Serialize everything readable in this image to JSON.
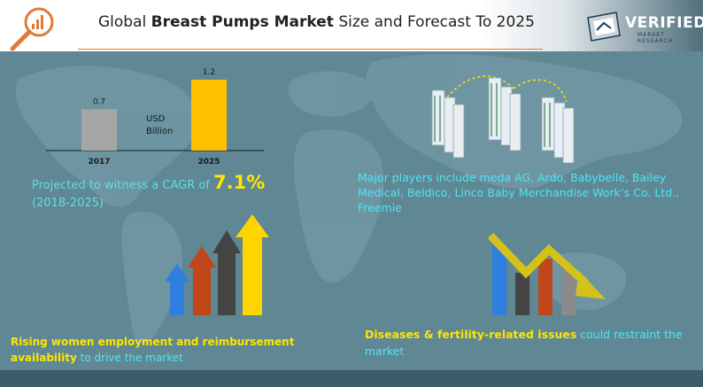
{
  "header": {
    "title_prefix": "Global ",
    "title_bold": "Breast Pumps Market",
    "title_suffix": " Size and Forecast To 2025",
    "logo_main": "VERIFIED",
    "logo_sub": "MARKET RESEARCH"
  },
  "chart_data": {
    "type": "bar",
    "categories": [
      "2017",
      "2025"
    ],
    "values": [
      0.7,
      1.2
    ],
    "data_labels": [
      "0.7",
      "1.2"
    ],
    "unit_label": "USD Billion",
    "unit_line1": "USD",
    "unit_line2": "Billion",
    "colors": [
      "#a6a6a6",
      "#ffc000"
    ],
    "ylim": [
      0,
      1.2
    ],
    "grid": false,
    "legend": "none"
  },
  "cagr": {
    "prefix": "Projected to witness a CAGR of ",
    "value": "7.1%",
    "period": "(2018-2025)"
  },
  "players": {
    "text": "Major players include meda AG, Ardo, Babybelle, Bailey Medical, Beldico, Linco Baby Merchandise Work’s Co. Ltd., Freemie"
  },
  "driver": {
    "highlight": "Rising women employment and reimbursement availability",
    "rest": "  to drive the market"
  },
  "restraint": {
    "highlight": "Diseases & fertility-related issues",
    "rest": " could restraint the market"
  },
  "colors": {
    "accent_yellow": "#ffe600",
    "accent_cyan": "#4fe6f4",
    "background": "#5f8794",
    "title_rule": "#e07a3a"
  },
  "icons": {
    "magnifier": "magnifier-icon",
    "buildings": "buildings-icon",
    "growth": "growth-arrows-icon",
    "decline": "decline-arrow-icon"
  }
}
